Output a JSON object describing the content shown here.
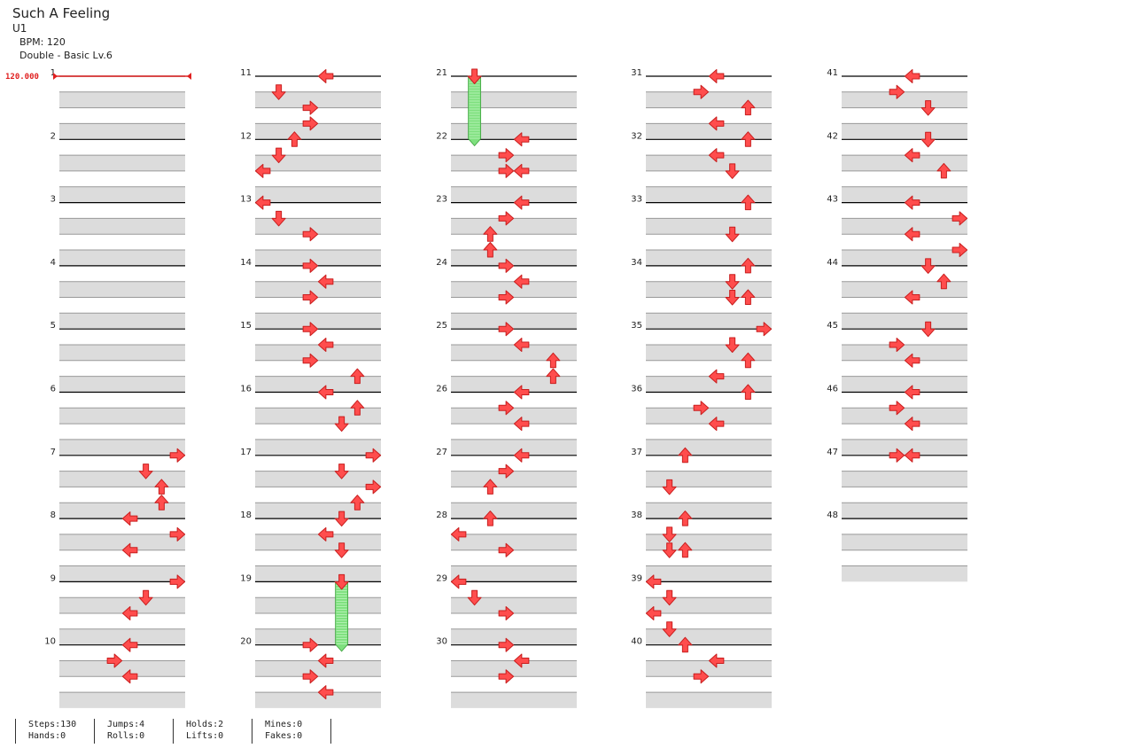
{
  "header": {
    "title": "Such A Feeling",
    "subtitle": "U1",
    "bpm": "BPM: 120",
    "difficulty": "Double - Basic  Lv.6"
  },
  "bpm_marker": "120.000",
  "measure_labels": [
    "1",
    "2",
    "3",
    "4",
    "5",
    "6",
    "7",
    "8",
    "9",
    "10",
    "11",
    "12",
    "13",
    "14",
    "15",
    "16",
    "17",
    "18",
    "19",
    "20",
    "21",
    "22",
    "23",
    "24",
    "25",
    "26",
    "27",
    "28",
    "29",
    "30",
    "31",
    "32",
    "33",
    "34",
    "35",
    "36",
    "37",
    "38",
    "39",
    "40",
    "41",
    "42",
    "43",
    "44",
    "45",
    "46",
    "47",
    "48"
  ],
  "colors": {
    "arrow_fill": "#ff4d4d",
    "arrow_stroke": "#c81e1e",
    "hold_body": "#7ee07e",
    "band": "#dcdcdc",
    "measure_line": "#000000",
    "beat_line": "#999999",
    "bpm_marker": "#e02020"
  },
  "notes": [
    {
      "m": 7,
      "b": 0,
      "lane": 7,
      "dir": "right"
    },
    {
      "m": 7,
      "b": 1,
      "lane": 5,
      "dir": "down"
    },
    {
      "m": 7,
      "b": 2,
      "lane": 6,
      "dir": "up"
    },
    {
      "m": 7,
      "b": 3,
      "lane": 6,
      "dir": "up"
    },
    {
      "m": 8,
      "b": 0,
      "lane": 4,
      "dir": "left"
    },
    {
      "m": 8,
      "b": 1,
      "lane": 7,
      "dir": "right"
    },
    {
      "m": 8,
      "b": 2,
      "lane": 4,
      "dir": "left"
    },
    {
      "m": 9,
      "b": 0,
      "lane": 7,
      "dir": "right"
    },
    {
      "m": 9,
      "b": 1,
      "lane": 5,
      "dir": "down"
    },
    {
      "m": 9,
      "b": 2,
      "lane": 4,
      "dir": "left"
    },
    {
      "m": 10,
      "b": 0,
      "lane": 4,
      "dir": "left"
    },
    {
      "m": 10,
      "b": 1,
      "lane": 3,
      "dir": "right"
    },
    {
      "m": 10,
      "b": 2,
      "lane": 4,
      "dir": "left"
    },
    {
      "m": 11,
      "b": 0,
      "lane": 4,
      "dir": "left"
    },
    {
      "m": 11,
      "b": 1,
      "lane": 1,
      "dir": "down"
    },
    {
      "m": 11,
      "b": 2,
      "lane": 3,
      "dir": "right"
    },
    {
      "m": 11,
      "b": 3,
      "lane": 3,
      "dir": "right"
    },
    {
      "m": 12,
      "b": 0,
      "lane": 2,
      "dir": "up"
    },
    {
      "m": 12,
      "b": 1,
      "lane": 1,
      "dir": "down"
    },
    {
      "m": 12,
      "b": 2,
      "lane": 0,
      "dir": "left"
    },
    {
      "m": 13,
      "b": 0,
      "lane": 0,
      "dir": "left"
    },
    {
      "m": 13,
      "b": 1,
      "lane": 1,
      "dir": "down"
    },
    {
      "m": 13,
      "b": 2,
      "lane": 3,
      "dir": "right"
    },
    {
      "m": 14,
      "b": 0,
      "lane": 3,
      "dir": "right"
    },
    {
      "m": 14,
      "b": 1,
      "lane": 4,
      "dir": "left"
    },
    {
      "m": 14,
      "b": 2,
      "lane": 3,
      "dir": "right"
    },
    {
      "m": 15,
      "b": 0,
      "lane": 3,
      "dir": "right"
    },
    {
      "m": 15,
      "b": 1,
      "lane": 4,
      "dir": "left"
    },
    {
      "m": 15,
      "b": 2,
      "lane": 3,
      "dir": "right"
    },
    {
      "m": 15,
      "b": 3,
      "lane": 6,
      "dir": "up"
    },
    {
      "m": 16,
      "b": 0,
      "lane": 4,
      "dir": "left"
    },
    {
      "m": 16,
      "b": 1,
      "lane": 6,
      "dir": "up"
    },
    {
      "m": 16,
      "b": 2,
      "lane": 5,
      "dir": "down"
    },
    {
      "m": 17,
      "b": 0,
      "lane": 7,
      "dir": "right"
    },
    {
      "m": 17,
      "b": 1,
      "lane": 5,
      "dir": "down"
    },
    {
      "m": 17,
      "b": 2,
      "lane": 7,
      "dir": "right"
    },
    {
      "m": 17,
      "b": 3,
      "lane": 6,
      "dir": "up"
    },
    {
      "m": 18,
      "b": 0,
      "lane": 5,
      "dir": "down"
    },
    {
      "m": 18,
      "b": 1,
      "lane": 4,
      "dir": "left"
    },
    {
      "m": 18,
      "b": 2,
      "lane": 5,
      "dir": "down"
    },
    {
      "m": 19,
      "b": 0,
      "lane": 5,
      "dir": "down",
      "hold": 4.3
    },
    {
      "m": 20,
      "b": 0,
      "lane": 3,
      "dir": "right"
    },
    {
      "m": 20,
      "b": 1,
      "lane": 4,
      "dir": "left"
    },
    {
      "m": 20,
      "b": 2,
      "lane": 3,
      "dir": "right"
    },
    {
      "m": 20,
      "b": 3,
      "lane": 4,
      "dir": "left"
    },
    {
      "m": 21,
      "b": 0,
      "lane": 1,
      "dir": "down",
      "hold": 4.3
    },
    {
      "m": 22,
      "b": 0,
      "lane": 4,
      "dir": "left"
    },
    {
      "m": 22,
      "b": 1,
      "lane": 3,
      "dir": "right"
    },
    {
      "m": 22,
      "b": 2,
      "lane": 3,
      "dir": "right"
    },
    {
      "m": 22,
      "b": 2,
      "lane": 4,
      "dir": "left"
    },
    {
      "m": 23,
      "b": 0,
      "lane": 4,
      "dir": "left"
    },
    {
      "m": 23,
      "b": 1,
      "lane": 3,
      "dir": "right"
    },
    {
      "m": 23,
      "b": 2,
      "lane": 2,
      "dir": "up"
    },
    {
      "m": 23,
      "b": 3,
      "lane": 2,
      "dir": "up"
    },
    {
      "m": 24,
      "b": 0,
      "lane": 3,
      "dir": "right"
    },
    {
      "m": 24,
      "b": 1,
      "lane": 4,
      "dir": "left"
    },
    {
      "m": 24,
      "b": 2,
      "lane": 3,
      "dir": "right"
    },
    {
      "m": 25,
      "b": 0,
      "lane": 3,
      "dir": "right"
    },
    {
      "m": 25,
      "b": 1,
      "lane": 4,
      "dir": "left"
    },
    {
      "m": 25,
      "b": 2,
      "lane": 6,
      "dir": "up"
    },
    {
      "m": 25,
      "b": 3,
      "lane": 6,
      "dir": "up"
    },
    {
      "m": 26,
      "b": 0,
      "lane": 4,
      "dir": "left"
    },
    {
      "m": 26,
      "b": 1,
      "lane": 3,
      "dir": "right"
    },
    {
      "m": 26,
      "b": 2,
      "lane": 4,
      "dir": "left"
    },
    {
      "m": 27,
      "b": 0,
      "lane": 4,
      "dir": "left"
    },
    {
      "m": 27,
      "b": 1,
      "lane": 3,
      "dir": "right"
    },
    {
      "m": 27,
      "b": 2,
      "lane": 2,
      "dir": "up"
    },
    {
      "m": 28,
      "b": 0,
      "lane": 2,
      "dir": "up"
    },
    {
      "m": 28,
      "b": 1,
      "lane": 0,
      "dir": "left"
    },
    {
      "m": 28,
      "b": 2,
      "lane": 3,
      "dir": "right"
    },
    {
      "m": 29,
      "b": 0,
      "lane": 0,
      "dir": "left"
    },
    {
      "m": 29,
      "b": 1,
      "lane": 1,
      "dir": "down"
    },
    {
      "m": 29,
      "b": 2,
      "lane": 3,
      "dir": "right"
    },
    {
      "m": 30,
      "b": 0,
      "lane": 3,
      "dir": "right"
    },
    {
      "m": 30,
      "b": 1,
      "lane": 4,
      "dir": "left"
    },
    {
      "m": 30,
      "b": 2,
      "lane": 3,
      "dir": "right"
    },
    {
      "m": 31,
      "b": 0,
      "lane": 4,
      "dir": "left"
    },
    {
      "m": 31,
      "b": 1,
      "lane": 3,
      "dir": "right"
    },
    {
      "m": 31,
      "b": 2,
      "lane": 6,
      "dir": "up"
    },
    {
      "m": 31,
      "b": 3,
      "lane": 4,
      "dir": "left"
    },
    {
      "m": 32,
      "b": 0,
      "lane": 6,
      "dir": "up"
    },
    {
      "m": 32,
      "b": 1,
      "lane": 4,
      "dir": "left"
    },
    {
      "m": 32,
      "b": 2,
      "lane": 5,
      "dir": "down"
    },
    {
      "m": 33,
      "b": 0,
      "lane": 6,
      "dir": "up"
    },
    {
      "m": 33,
      "b": 2,
      "lane": 5,
      "dir": "down"
    },
    {
      "m": 34,
      "b": 0,
      "lane": 6,
      "dir": "up"
    },
    {
      "m": 34,
      "b": 1,
      "lane": 5,
      "dir": "down"
    },
    {
      "m": 34,
      "b": 2,
      "lane": 5,
      "dir": "down"
    },
    {
      "m": 34,
      "b": 2,
      "lane": 6,
      "dir": "up"
    },
    {
      "m": 35,
      "b": 0,
      "lane": 7,
      "dir": "right"
    },
    {
      "m": 35,
      "b": 1,
      "lane": 5,
      "dir": "down"
    },
    {
      "m": 35,
      "b": 2,
      "lane": 6,
      "dir": "up"
    },
    {
      "m": 35,
      "b": 3,
      "lane": 4,
      "dir": "left"
    },
    {
      "m": 36,
      "b": 0,
      "lane": 6,
      "dir": "up"
    },
    {
      "m": 36,
      "b": 1,
      "lane": 3,
      "dir": "right"
    },
    {
      "m": 36,
      "b": 2,
      "lane": 4,
      "dir": "left"
    },
    {
      "m": 37,
      "b": 0,
      "lane": 2,
      "dir": "up"
    },
    {
      "m": 37,
      "b": 2,
      "lane": 1,
      "dir": "down"
    },
    {
      "m": 38,
      "b": 0,
      "lane": 2,
      "dir": "up"
    },
    {
      "m": 38,
      "b": 1,
      "lane": 1,
      "dir": "down"
    },
    {
      "m": 38,
      "b": 2,
      "lane": 1,
      "dir": "down"
    },
    {
      "m": 38,
      "b": 2,
      "lane": 2,
      "dir": "up"
    },
    {
      "m": 39,
      "b": 0,
      "lane": 0,
      "dir": "left"
    },
    {
      "m": 39,
      "b": 1,
      "lane": 1,
      "dir": "down"
    },
    {
      "m": 39,
      "b": 2,
      "lane": 0,
      "dir": "left"
    },
    {
      "m": 39,
      "b": 3,
      "lane": 1,
      "dir": "down"
    },
    {
      "m": 40,
      "b": 0,
      "lane": 2,
      "dir": "up"
    },
    {
      "m": 40,
      "b": 1,
      "lane": 4,
      "dir": "left"
    },
    {
      "m": 40,
      "b": 2,
      "lane": 3,
      "dir": "right"
    },
    {
      "m": 41,
      "b": 0,
      "lane": 4,
      "dir": "left"
    },
    {
      "m": 41,
      "b": 1,
      "lane": 3,
      "dir": "right"
    },
    {
      "m": 41,
      "b": 2,
      "lane": 5,
      "dir": "down"
    },
    {
      "m": 42,
      "b": 0,
      "lane": 5,
      "dir": "down"
    },
    {
      "m": 42,
      "b": 1,
      "lane": 4,
      "dir": "left"
    },
    {
      "m": 42,
      "b": 2,
      "lane": 6,
      "dir": "up"
    },
    {
      "m": 43,
      "b": 0,
      "lane": 4,
      "dir": "left"
    },
    {
      "m": 43,
      "b": 1,
      "lane": 7,
      "dir": "right"
    },
    {
      "m": 43,
      "b": 2,
      "lane": 4,
      "dir": "left"
    },
    {
      "m": 43,
      "b": 3,
      "lane": 7,
      "dir": "right"
    },
    {
      "m": 44,
      "b": 0,
      "lane": 5,
      "dir": "down"
    },
    {
      "m": 44,
      "b": 1,
      "lane": 6,
      "dir": "up"
    },
    {
      "m": 44,
      "b": 2,
      "lane": 4,
      "dir": "left"
    },
    {
      "m": 45,
      "b": 0,
      "lane": 5,
      "dir": "down"
    },
    {
      "m": 45,
      "b": 1,
      "lane": 3,
      "dir": "right"
    },
    {
      "m": 45,
      "b": 2,
      "lane": 4,
      "dir": "left"
    },
    {
      "m": 46,
      "b": 0,
      "lane": 4,
      "dir": "left"
    },
    {
      "m": 46,
      "b": 1,
      "lane": 3,
      "dir": "right"
    },
    {
      "m": 46,
      "b": 2,
      "lane": 4,
      "dir": "left"
    },
    {
      "m": 47,
      "b": 0,
      "lane": 3,
      "dir": "right"
    },
    {
      "m": 47,
      "b": 0,
      "lane": 4,
      "dir": "left"
    }
  ],
  "stats": [
    {
      "top": "Steps:130",
      "bottom": "Hands:0"
    },
    {
      "top": "Jumps:4",
      "bottom": "Rolls:0"
    },
    {
      "top": "Holds:2",
      "bottom": "Lifts:0"
    },
    {
      "top": "Mines:0",
      "bottom": "Fakes:0"
    }
  ]
}
